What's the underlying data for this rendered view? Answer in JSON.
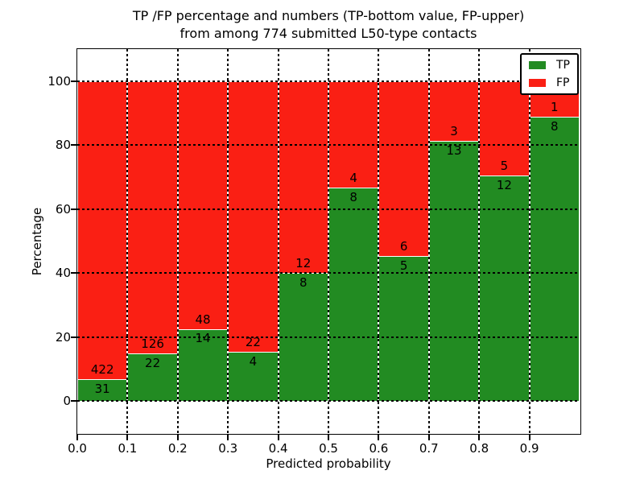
{
  "title": {
    "line1": "TP /FP percentage and numbers (TP-bottom value, FP-upper)",
    "line2": "from among 774 submitted L50-type contacts"
  },
  "axes": {
    "xlabel": "Predicted probability",
    "ylabel": "Percentage",
    "x_tick_labels": [
      "0.0",
      "0.1",
      "0.2",
      "0.3",
      "0.4",
      "0.5",
      "0.6",
      "0.7",
      "0.8",
      "0.9"
    ],
    "y_tick_values": [
      0,
      20,
      40,
      60,
      80,
      100
    ],
    "xlim": [
      0.0,
      1.0
    ],
    "ylim": [
      -10,
      110
    ],
    "grid": "dotted black, drawn above bars"
  },
  "legend": {
    "position": "upper right",
    "entries": [
      {
        "label": "TP",
        "color": "#228b22"
      },
      {
        "label": "FP",
        "color": "#fa1f14"
      }
    ]
  },
  "chart_data": {
    "type": "bar",
    "stacked": true,
    "percent_normalized": true,
    "title": "TP /FP percentage and numbers (TP-bottom value, FP-upper)\nfrom among 774 submitted L50-type contacts",
    "xlabel": "Predicted probability",
    "ylabel": "Percentage",
    "xlim": [
      0.0,
      1.0
    ],
    "ylim": [
      -10,
      110
    ],
    "bin_width": 0.1,
    "bin_starts": [
      0.0,
      0.1,
      0.2,
      0.3,
      0.4,
      0.5,
      0.6,
      0.7,
      0.8,
      0.9
    ],
    "total_contacts": 774,
    "series": [
      {
        "name": "TP",
        "color": "#228b22",
        "counts": [
          31,
          22,
          14,
          4,
          8,
          8,
          5,
          13,
          12,
          8
        ]
      },
      {
        "name": "FP",
        "color": "#fa1f14",
        "counts": [
          422,
          126,
          48,
          22,
          12,
          4,
          6,
          3,
          5,
          1
        ]
      }
    ],
    "tp_percent_of_bin": [
      6.8,
      14.9,
      22.6,
      15.4,
      40.0,
      66.7,
      45.5,
      81.3,
      70.6,
      88.9
    ],
    "bar_top_percent": 100,
    "annotation_rule": "TP count printed just below the TP/FP boundary, FP count just above it"
  }
}
